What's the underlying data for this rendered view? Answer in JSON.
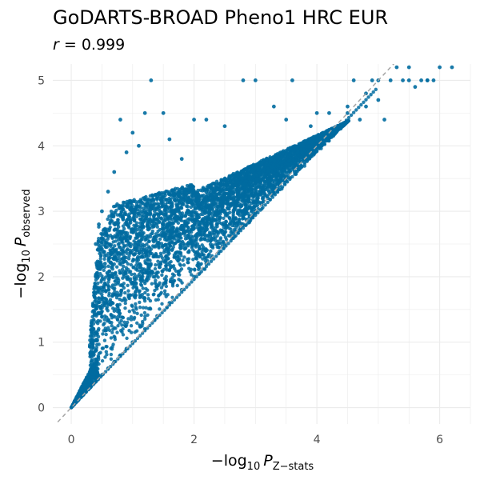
{
  "title": "GoDARTS-BROAD Pheno1 HRC EUR",
  "subtitle": {
    "var": "r",
    "eq": " = ",
    "value": "0.999"
  },
  "chart_data": {
    "type": "scatter",
    "title": "GoDARTS-BROAD Pheno1 HRC EUR",
    "subtitle": "r = 0.999",
    "xlabel": {
      "prefix": "−log",
      "sub1": "10",
      "var": "P",
      "sub2": "Z−stats"
    },
    "ylabel": {
      "prefix": "−log",
      "sub1": "10",
      "var": "P",
      "sub2": "observed"
    },
    "xlim": [
      -0.3,
      6.5
    ],
    "ylim": [
      -0.25,
      5.25
    ],
    "x_ticks": [
      "0",
      "2",
      "4",
      "6"
    ],
    "y_ticks": [
      "0",
      "1",
      "2",
      "3",
      "4",
      "5"
    ],
    "grid": true,
    "reference_line": {
      "type": "y=x",
      "style": "dashed",
      "color": "#a6a6a6"
    },
    "point_color": "#006ba0",
    "series": [
      {
        "x": [
          0.05,
          0.1,
          0.2,
          0.3,
          0.4,
          0.5,
          0.6,
          0.7,
          0.8,
          0.9,
          1.0,
          1.2,
          1.4,
          1.6,
          1.8,
          2.0,
          2.2,
          2.5,
          2.8,
          3.0,
          3.2,
          3.5,
          3.8,
          4.0,
          4.2,
          4.5,
          4.8,
          5.0,
          5.2,
          5.5,
          5.8,
          6.0,
          6.2,
          0.4,
          0.4,
          0.42,
          0.45,
          0.5,
          0.5,
          0.55,
          0.6,
          0.7,
          0.8,
          0.9,
          1.0,
          1.1,
          1.2,
          1.3,
          1.5,
          1.6,
          1.8,
          2.0,
          2.2,
          2.5,
          2.8,
          3.0,
          3.3,
          3.5,
          3.6,
          3.9,
          4.0,
          4.2,
          4.5,
          4.6,
          4.7,
          4.8,
          4.9,
          5.0,
          5.1,
          5.3,
          5.4,
          5.5,
          5.6,
          5.7,
          5.8,
          5.9
        ],
        "y": [
          0.05,
          0.1,
          0.2,
          0.3,
          0.4,
          0.5,
          0.6,
          0.7,
          0.8,
          0.9,
          1.0,
          1.2,
          1.4,
          1.6,
          1.8,
          2.0,
          2.2,
          2.5,
          2.8,
          3.0,
          3.2,
          3.5,
          3.8,
          4.0,
          4.2,
          4.5,
          4.8,
          5.0,
          5.0,
          5.0,
          5.0,
          5.2,
          5.2,
          2.5,
          2.0,
          1.6,
          2.8,
          3.0,
          1.8,
          2.2,
          3.3,
          3.6,
          4.4,
          3.9,
          4.2,
          4.0,
          4.5,
          5.0,
          4.5,
          4.1,
          3.8,
          4.4,
          4.4,
          4.3,
          5.0,
          5.0,
          4.6,
          4.4,
          5.0,
          4.3,
          4.5,
          4.5,
          4.6,
          5.0,
          4.4,
          4.6,
          5.0,
          4.7,
          4.4,
          5.2,
          5.0,
          5.2,
          4.9,
          5.0,
          5.0,
          5.0
        ]
      }
    ]
  }
}
